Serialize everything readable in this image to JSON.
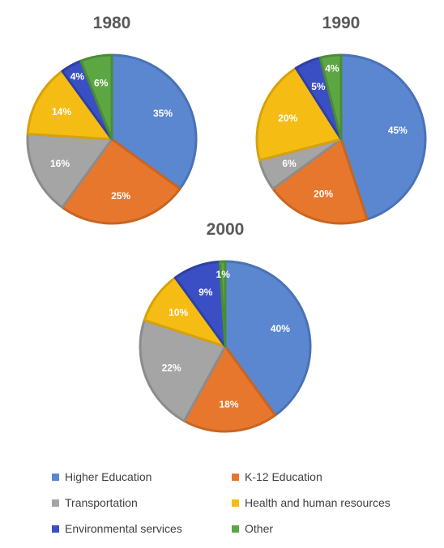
{
  "chart_data": [
    {
      "type": "pie",
      "title": "1980",
      "categories": [
        "Higher Education",
        "K-12 Education",
        "Transportation",
        "Health and human resources",
        "Environmental services",
        "Other"
      ],
      "values": [
        35,
        25,
        16,
        14,
        4,
        6
      ],
      "labels": [
        "35%",
        "25%",
        "16%",
        "14%",
        "4%",
        "6%"
      ]
    },
    {
      "type": "pie",
      "title": "1990",
      "categories": [
        "Higher Education",
        "K-12 Education",
        "Transportation",
        "Health and human resources",
        "Environmental services",
        "Other"
      ],
      "values": [
        45,
        20,
        6,
        20,
        5,
        4
      ],
      "labels": [
        "45%",
        "20%",
        "6%",
        "20%",
        "5%",
        "4%"
      ]
    },
    {
      "type": "pie",
      "title": "2000",
      "categories": [
        "Higher Education",
        "K-12 Education",
        "Transportation",
        "Health and human resources",
        "Environmental services",
        "Other"
      ],
      "values": [
        40,
        18,
        22,
        10,
        9,
        1
      ],
      "labels": [
        "40%",
        "18%",
        "22%",
        "10%",
        "9%",
        "1%"
      ]
    }
  ],
  "legend": [
    {
      "label": "Higher Education",
      "color": "#5b87d0"
    },
    {
      "label": "K-12 Education",
      "color": "#e8772e"
    },
    {
      "label": "Transportation",
      "color": "#a5a5a5"
    },
    {
      "label": "Health and human resources",
      "color": "#f5bd14"
    },
    {
      "label": "Environmental services",
      "color": "#3b4fc4"
    },
    {
      "label": "Other",
      "color": "#5ca744"
    }
  ],
  "colors": {
    "slice_fills": [
      "#5b87d0",
      "#e8772e",
      "#a5a5a5",
      "#f5bd14",
      "#3b4fc4",
      "#5ca744"
    ],
    "slice_borders": [
      "#4a72b5",
      "#c9651f",
      "#8c8c8c",
      "#d6a20c",
      "#2e40a3",
      "#4a8c36"
    ]
  }
}
